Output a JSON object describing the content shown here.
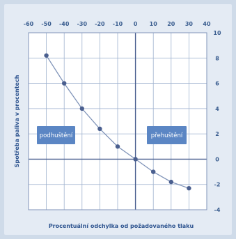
{
  "chart_data": {
    "type": "line",
    "title": "",
    "xlabel": "Procentuální odchylka od požadovaného tlaku",
    "ylabel": "Spotřeba paliva v procentech",
    "x_ticks": [
      "-60",
      "-50",
      "-40",
      "-30",
      "-20",
      "-10",
      "0",
      "10",
      "20",
      "30",
      "40"
    ],
    "y_ticks": [
      "10",
      "8",
      "6",
      "4",
      "2",
      "0",
      "-2",
      "-4"
    ],
    "xlim": [
      -60,
      40
    ],
    "ylim": [
      -4,
      10
    ],
    "x_axis_position": "top",
    "y_axis_position": "right",
    "grid": true,
    "region_labels": [
      "podhuštění",
      "přehuštění"
    ],
    "series": [
      {
        "x": [
          -50,
          -40,
          -30,
          -20,
          -10,
          0,
          10,
          20,
          30
        ],
        "y": [
          8.2,
          6.0,
          4.0,
          2.4,
          1.0,
          0.0,
          -1.0,
          -1.8,
          -2.3
        ]
      }
    ],
    "colors": {
      "line": "#7f93b8",
      "marker": "#4a5f8f",
      "label_box": "#5b86c4",
      "text": "#3a5d8f"
    }
  }
}
